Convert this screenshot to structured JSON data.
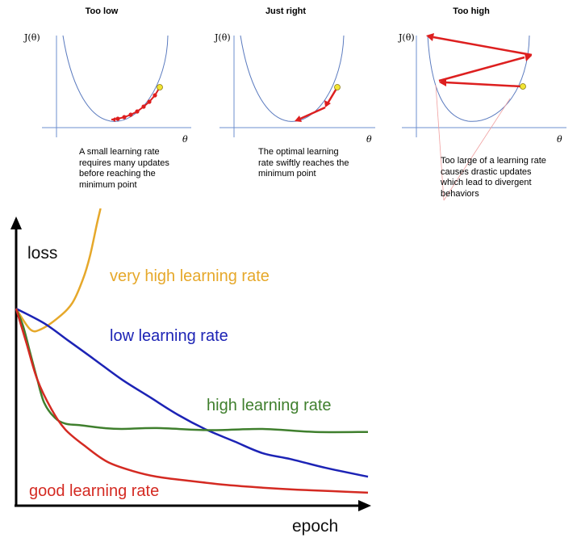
{
  "panels": [
    {
      "title": "Too low",
      "y_label": "J(θ)",
      "x_label": "θ",
      "caption_lines": [
        "A small learning rate",
        "requires many updates",
        "before reaching the",
        "minimum point"
      ]
    },
    {
      "title": "Just right",
      "y_label": "J(θ)",
      "x_label": "θ",
      "caption_lines": [
        "The optimal learning",
        "rate swiftly reaches the",
        "minimum point"
      ]
    },
    {
      "title": "Too high",
      "y_label": "J(θ)",
      "x_label": "θ",
      "caption_lines": [
        "Too large of a learning rate",
        "causes drastic updates",
        "which lead to divergent",
        "behaviors"
      ]
    }
  ],
  "colors": {
    "curve": "#5b7bbf",
    "axis": "#6d8fcf",
    "step_arrow": "#dd1f1f",
    "start_point": "#f2e433",
    "very_high": "#e6a82a",
    "low": "#1c23b5",
    "high": "#3f7f2d",
    "good": "#d42a22"
  },
  "chart_data": {
    "type": "line",
    "xlabel": "epoch",
    "ylabel": "loss",
    "xlim": [
      0,
      100
    ],
    "ylim": [
      0,
      100
    ],
    "series": [
      {
        "name": "very high learning rate",
        "color": "#e6a82a",
        "x": [
          0,
          4,
          7,
          12,
          16,
          19,
          21,
          23,
          24
        ],
        "y": [
          66,
          59,
          59,
          63,
          68,
          76,
          84,
          95,
          100
        ]
      },
      {
        "name": "low learning rate",
        "color": "#1c23b5",
        "x": [
          0,
          8,
          15,
          22,
          30,
          38,
          46,
          54,
          62,
          70,
          78,
          88,
          100
        ],
        "y": [
          66,
          61,
          55,
          49,
          42,
          36,
          30,
          25,
          21,
          17,
          15,
          12,
          9
        ]
      },
      {
        "name": "high learning rate",
        "color": "#3f7f2d",
        "x": [
          0,
          2,
          4,
          6,
          8,
          11,
          14,
          18,
          25,
          30,
          40,
          55,
          70,
          85,
          100
        ],
        "y": [
          66,
          60,
          51,
          42,
          34,
          29,
          27,
          26.5,
          25.5,
          25.2,
          25.5,
          24.8,
          25.2,
          24.2,
          24.2
        ]
      },
      {
        "name": "good learning rate",
        "color": "#d42a22",
        "x": [
          0,
          3,
          6,
          10,
          14,
          20,
          26,
          33,
          40,
          50,
          60,
          70,
          80,
          90,
          100
        ],
        "y": [
          66,
          54,
          42,
          32,
          25,
          19,
          14,
          11,
          9,
          7.5,
          6.2,
          5.3,
          4.6,
          4.1,
          3.6
        ]
      }
    ]
  }
}
